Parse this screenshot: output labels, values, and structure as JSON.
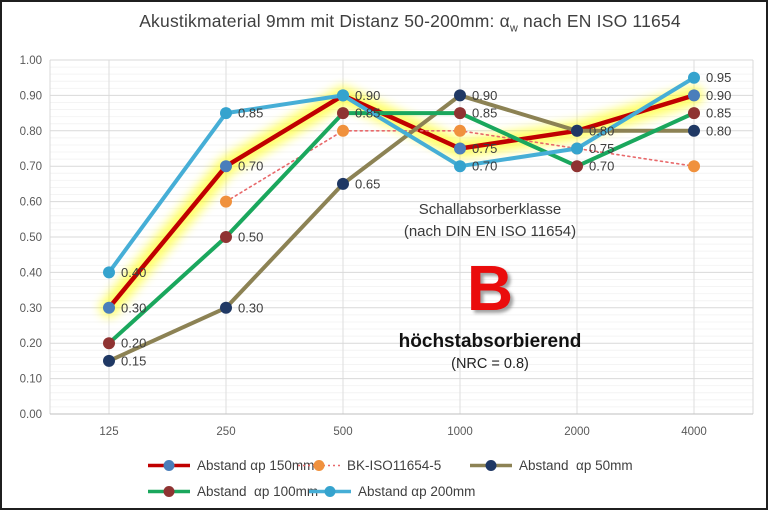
{
  "title": {
    "prefix": "Akustikmaterial 9mm mit Distanz 50-200mm: α",
    "sub": "w",
    "suffix": " nach EN ISO 11654"
  },
  "chart_data": {
    "type": "line",
    "title": "Akustikmaterial 9mm mit Distanz 50-200mm: αw nach EN ISO 11654",
    "categories": [
      "125",
      "250",
      "500",
      "1000",
      "2000",
      "4000"
    ],
    "xlabel": "",
    "ylabel": "",
    "ylim": [
      0,
      1
    ],
    "yticks": [
      "1.00",
      "0.90",
      "0.80",
      "0.70",
      "0.60",
      "0.50",
      "0.40",
      "0.30",
      "0.20",
      "0.10",
      "0.00"
    ],
    "grid": true,
    "legend_position": "bottom",
    "highlight_color": "#ffff00",
    "series": [
      {
        "name": "Abstand αp 150mm",
        "values": [
          0.3,
          0.7,
          0.9,
          0.75,
          0.8,
          0.9
        ],
        "labels": [
          "0.30",
          "0.70",
          "",
          "0.75",
          "",
          "0.90"
        ],
        "line_color": "#c00000",
        "marker_color": "#4a7ebb",
        "style": "solid",
        "highlighted": true
      },
      {
        "name": "BK-ISO11654-5",
        "values": [
          null,
          0.6,
          0.8,
          0.8,
          0.75,
          0.7
        ],
        "labels": [
          "",
          "",
          "",
          "",
          "",
          ""
        ],
        "line_color": "#e8696b",
        "marker_color": "#f0913d",
        "style": "dotted",
        "highlighted": false
      },
      {
        "name": "Abstand  αp 50mm",
        "values": [
          0.15,
          0.3,
          0.65,
          0.9,
          0.8,
          0.8
        ],
        "labels": [
          "0.15",
          "0.30",
          "0.65",
          "0.90",
          "0.80",
          "0.80"
        ],
        "line_color": "#8c8254",
        "marker_color": "#1f3864",
        "style": "solid",
        "highlighted": false
      },
      {
        "name": "Abstand  αp 100mm",
        "values": [
          0.2,
          0.5,
          0.85,
          0.85,
          0.7,
          0.85
        ],
        "labels": [
          "0.20",
          "0.50",
          "0.85",
          "0.85",
          "0.70",
          "0.85"
        ],
        "line_color": "#1aa75d",
        "marker_color": "#8f3332",
        "style": "solid",
        "highlighted": false
      },
      {
        "name": "Abstand αp 200mm",
        "values": [
          0.4,
          0.85,
          0.9,
          0.7,
          0.75,
          0.95
        ],
        "labels": [
          "0.40",
          "0.85",
          "0.90",
          "0.70",
          "0.75",
          "0.95"
        ],
        "line_color": "#46aed6",
        "marker_color": "#35a3ce",
        "style": "solid",
        "highlighted": false
      }
    ]
  },
  "annotation": {
    "line1": "Schallabsorberklasse",
    "line2": "(nach DIN EN ISO 11654)",
    "class_letter": "B",
    "line3": "höchstabsorbierend",
    "line4": "(NRC = 0.8)"
  }
}
